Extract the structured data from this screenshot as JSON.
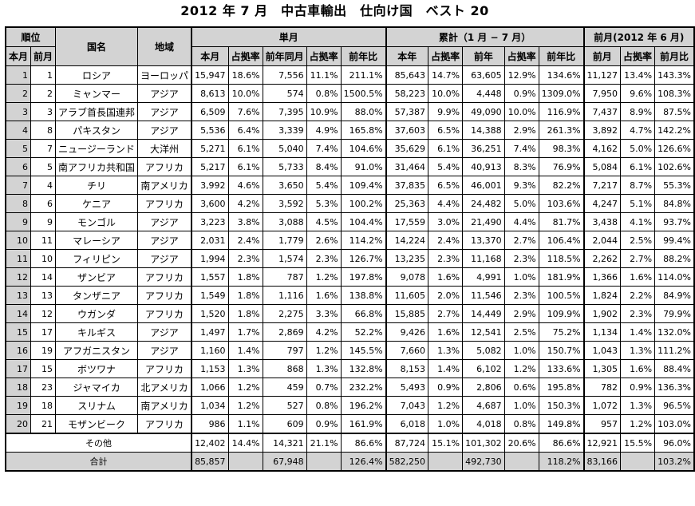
{
  "title": "2012 年 7 月　中古車輸出　仕向け国　ベスト 20",
  "headers": {
    "rank": "順位",
    "country": "国名",
    "region": "地域",
    "monthly": "単月",
    "cumulative": "累計（1 月 − 7 月）",
    "prev_month": "前月(2012 年 6 月)",
    "this_month_rank": "本月",
    "prev_month_rank": "前月",
    "monthly_cols": [
      "本月",
      "占拠率",
      "前年同月",
      "占拠率",
      "前年比"
    ],
    "cumulative_cols": [
      "本年",
      "占拠率",
      "前年",
      "占拠率",
      "前年比"
    ],
    "prev_cols": [
      "前月",
      "占拠率",
      "前月比"
    ]
  },
  "rows": [
    {
      "r": "1",
      "pr": "1",
      "country": "ロシア",
      "region": "ヨーロッパ",
      "m": [
        "15,947",
        "18.6%",
        "7,556",
        "11.1%",
        "211.1%"
      ],
      "c": [
        "85,643",
        "14.7%",
        "63,605",
        "12.9%",
        "134.6%"
      ],
      "p": [
        "11,127",
        "13.4%",
        "143.3%"
      ]
    },
    {
      "r": "2",
      "pr": "2",
      "country": "ミャンマー",
      "region": "アジア",
      "m": [
        "8,613",
        "10.0%",
        "574",
        "0.8%",
        "1500.5%"
      ],
      "c": [
        "58,223",
        "10.0%",
        "4,448",
        "0.9%",
        "1309.0%"
      ],
      "p": [
        "7,950",
        "9.6%",
        "108.3%"
      ]
    },
    {
      "r": "3",
      "pr": "3",
      "country": "アラブ首長国連邦",
      "region": "アジア",
      "m": [
        "6,509",
        "7.6%",
        "7,395",
        "10.9%",
        "88.0%"
      ],
      "c": [
        "57,387",
        "9.9%",
        "49,090",
        "10.0%",
        "116.9%"
      ],
      "p": [
        "7,437",
        "8.9%",
        "87.5%"
      ]
    },
    {
      "r": "4",
      "pr": "8",
      "country": "パキスタン",
      "region": "アジア",
      "m": [
        "5,536",
        "6.4%",
        "3,339",
        "4.9%",
        "165.8%"
      ],
      "c": [
        "37,603",
        "6.5%",
        "14,388",
        "2.9%",
        "261.3%"
      ],
      "p": [
        "3,892",
        "4.7%",
        "142.2%"
      ]
    },
    {
      "r": "5",
      "pr": "7",
      "country": "ニュージーランド",
      "region": "大洋州",
      "m": [
        "5,271",
        "6.1%",
        "5,040",
        "7.4%",
        "104.6%"
      ],
      "c": [
        "35,629",
        "6.1%",
        "36,251",
        "7.4%",
        "98.3%"
      ],
      "p": [
        "4,162",
        "5.0%",
        "126.6%"
      ]
    },
    {
      "r": "6",
      "pr": "5",
      "country": "南アフリカ共和国",
      "region": "アフリカ",
      "m": [
        "5,217",
        "6.1%",
        "5,733",
        "8.4%",
        "91.0%"
      ],
      "c": [
        "31,464",
        "5.4%",
        "40,913",
        "8.3%",
        "76.9%"
      ],
      "p": [
        "5,084",
        "6.1%",
        "102.6%"
      ]
    },
    {
      "r": "7",
      "pr": "4",
      "country": "チリ",
      "region": "南アメリカ",
      "m": [
        "3,992",
        "4.6%",
        "3,650",
        "5.4%",
        "109.4%"
      ],
      "c": [
        "37,835",
        "6.5%",
        "46,001",
        "9.3%",
        "82.2%"
      ],
      "p": [
        "7,217",
        "8.7%",
        "55.3%"
      ]
    },
    {
      "r": "8",
      "pr": "6",
      "country": "ケニア",
      "region": "アフリカ",
      "m": [
        "3,600",
        "4.2%",
        "3,592",
        "5.3%",
        "100.2%"
      ],
      "c": [
        "25,363",
        "4.4%",
        "24,482",
        "5.0%",
        "103.6%"
      ],
      "p": [
        "4,247",
        "5.1%",
        "84.8%"
      ]
    },
    {
      "r": "9",
      "pr": "9",
      "country": "モンゴル",
      "region": "アジア",
      "m": [
        "3,223",
        "3.8%",
        "3,088",
        "4.5%",
        "104.4%"
      ],
      "c": [
        "17,559",
        "3.0%",
        "21,490",
        "4.4%",
        "81.7%"
      ],
      "p": [
        "3,438",
        "4.1%",
        "93.7%"
      ]
    },
    {
      "r": "10",
      "pr": "11",
      "country": "マレーシア",
      "region": "アジア",
      "m": [
        "2,031",
        "2.4%",
        "1,779",
        "2.6%",
        "114.2%"
      ],
      "c": [
        "14,224",
        "2.4%",
        "13,370",
        "2.7%",
        "106.4%"
      ],
      "p": [
        "2,044",
        "2.5%",
        "99.4%"
      ]
    },
    {
      "r": "11",
      "pr": "10",
      "country": "フィリピン",
      "region": "アジア",
      "m": [
        "1,994",
        "2.3%",
        "1,574",
        "2.3%",
        "126.7%"
      ],
      "c": [
        "13,235",
        "2.3%",
        "11,168",
        "2.3%",
        "118.5%"
      ],
      "p": [
        "2,262",
        "2.7%",
        "88.2%"
      ]
    },
    {
      "r": "12",
      "pr": "14",
      "country": "ザンビア",
      "region": "アフリカ",
      "m": [
        "1,557",
        "1.8%",
        "787",
        "1.2%",
        "197.8%"
      ],
      "c": [
        "9,078",
        "1.6%",
        "4,991",
        "1.0%",
        "181.9%"
      ],
      "p": [
        "1,366",
        "1.6%",
        "114.0%"
      ]
    },
    {
      "r": "13",
      "pr": "13",
      "country": "タンザニア",
      "region": "アフリカ",
      "m": [
        "1,549",
        "1.8%",
        "1,116",
        "1.6%",
        "138.8%"
      ],
      "c": [
        "11,605",
        "2.0%",
        "11,546",
        "2.3%",
        "100.5%"
      ],
      "p": [
        "1,824",
        "2.2%",
        "84.9%"
      ]
    },
    {
      "r": "14",
      "pr": "12",
      "country": "ウガンダ",
      "region": "アフリカ",
      "m": [
        "1,520",
        "1.8%",
        "2,275",
        "3.3%",
        "66.8%"
      ],
      "c": [
        "15,885",
        "2.7%",
        "14,449",
        "2.9%",
        "109.9%"
      ],
      "p": [
        "1,902",
        "2.3%",
        "79.9%"
      ]
    },
    {
      "r": "15",
      "pr": "17",
      "country": "キルギス",
      "region": "アジア",
      "m": [
        "1,497",
        "1.7%",
        "2,869",
        "4.2%",
        "52.2%"
      ],
      "c": [
        "9,426",
        "1.6%",
        "12,541",
        "2.5%",
        "75.2%"
      ],
      "p": [
        "1,134",
        "1.4%",
        "132.0%"
      ]
    },
    {
      "r": "16",
      "pr": "19",
      "country": "アフガニスタン",
      "region": "アジア",
      "m": [
        "1,160",
        "1.4%",
        "797",
        "1.2%",
        "145.5%"
      ],
      "c": [
        "7,660",
        "1.3%",
        "5,082",
        "1.0%",
        "150.7%"
      ],
      "p": [
        "1,043",
        "1.3%",
        "111.2%"
      ]
    },
    {
      "r": "17",
      "pr": "15",
      "country": "ボツワナ",
      "region": "アフリカ",
      "m": [
        "1,153",
        "1.3%",
        "868",
        "1.3%",
        "132.8%"
      ],
      "c": [
        "8,153",
        "1.4%",
        "6,102",
        "1.2%",
        "133.6%"
      ],
      "p": [
        "1,305",
        "1.6%",
        "88.4%"
      ]
    },
    {
      "r": "18",
      "pr": "23",
      "country": "ジャマイカ",
      "region": "北アメリカ",
      "m": [
        "1,066",
        "1.2%",
        "459",
        "0.7%",
        "232.2%"
      ],
      "c": [
        "5,493",
        "0.9%",
        "2,806",
        "0.6%",
        "195.8%"
      ],
      "p": [
        "782",
        "0.9%",
        "136.3%"
      ]
    },
    {
      "r": "19",
      "pr": "18",
      "country": "スリナム",
      "region": "南アメリカ",
      "m": [
        "1,034",
        "1.2%",
        "527",
        "0.8%",
        "196.2%"
      ],
      "c": [
        "7,043",
        "1.2%",
        "4,687",
        "1.0%",
        "150.3%"
      ],
      "p": [
        "1,072",
        "1.3%",
        "96.5%"
      ]
    },
    {
      "r": "20",
      "pr": "21",
      "country": "モザンビーク",
      "region": "アフリカ",
      "m": [
        "986",
        "1.1%",
        "609",
        "0.9%",
        "161.9%"
      ],
      "c": [
        "6,018",
        "1.0%",
        "4,018",
        "0.8%",
        "149.8%"
      ],
      "p": [
        "957",
        "1.2%",
        "103.0%"
      ]
    }
  ],
  "other": {
    "label": "その他",
    "m": [
      "12,402",
      "14.4%",
      "14,321",
      "21.1%",
      "86.6%"
    ],
    "c": [
      "87,724",
      "15.1%",
      "101,302",
      "20.6%",
      "86.6%"
    ],
    "p": [
      "12,921",
      "15.5%",
      "96.0%"
    ]
  },
  "total": {
    "label": "合計",
    "m": [
      "85,857",
      "",
      "67,948",
      "",
      "126.4%"
    ],
    "c": [
      "582,250",
      "",
      "492,730",
      "",
      "118.2%"
    ],
    "p": [
      "83,166",
      "",
      "103.2%"
    ]
  }
}
